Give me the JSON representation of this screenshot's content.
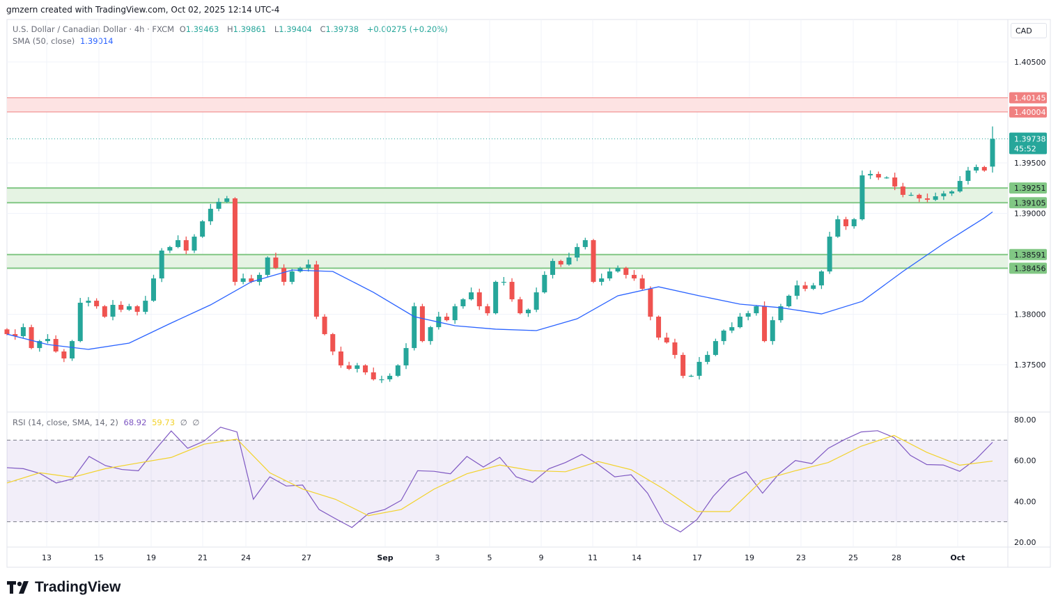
{
  "credit": "gmzern created with TradingView.com, Oct 02, 2025 12:14 UTC-4",
  "legend": {
    "symbol": "U.S. Dollar / Canadian Dollar · 4h · FXCM",
    "open_label": "O",
    "open": "1.39463",
    "high_label": "H",
    "high": "1.39861",
    "low_label": "L",
    "low": "1.39404",
    "close_label": "C",
    "close": "1.39738",
    "change": "+0.00275 (+0.20%)",
    "sma_label": "SMA (50, close)",
    "sma_value": "1.39014",
    "rsi_label": "RSI (14, close, SMA, 14, 2)",
    "rsi_value": "68.92",
    "rsi_sma_value": "59.73",
    "null1": "∅",
    "null2": "∅"
  },
  "currency": "CAD",
  "last_price_label": {
    "price": "1.39738",
    "countdown": "45:52"
  },
  "logo_text": "TradingView",
  "colors": {
    "up": "#26a69a",
    "down": "#ef5350",
    "sma": "#2962ff",
    "rsi": "#7e57c2",
    "rsi_sma": "#f2d22b",
    "resistance_zone": "#f08080",
    "support_zone": "#81c784"
  },
  "chart_data": [
    {
      "type": "candlestick",
      "interval": "4h",
      "price_axis": {
        "ticks": [
          "1.40500",
          "1.39500",
          "1.39000",
          "1.38000",
          "1.37500"
        ],
        "range": [
          1.3715,
          1.4085
        ]
      },
      "x_ticks": [
        "13",
        "15",
        "19",
        "21",
        "24",
        "27",
        "Sep",
        "3",
        "5",
        "9",
        "11",
        "14",
        "17",
        "19",
        "23",
        "25",
        "28",
        "Oct"
      ],
      "last": {
        "open": 1.39463,
        "high": 1.39861,
        "low": 1.39404,
        "close": 1.39738
      },
      "closes": [
        1.37803,
        1.37783,
        1.37872,
        1.37665,
        1.37734,
        1.37755,
        1.37631,
        1.37562,
        1.37734,
        1.38114,
        1.38134,
        1.38079,
        1.37976,
        1.38093,
        1.38045,
        1.38079,
        1.38024,
        1.38134,
        1.38355,
        1.38631,
        1.38666,
        1.38734,
        1.38631,
        1.38769,
        1.38921,
        1.39045,
        1.39114,
        1.39148,
        1.38321,
        1.38355,
        1.38321,
        1.3839,
        1.38562,
        1.38459,
        1.38321,
        1.38424,
        1.38459,
        1.38493,
        1.37976,
        1.37803,
        1.37631,
        1.37493,
        1.37459,
        1.37493,
        1.37424,
        1.37355,
        1.37355,
        1.3739,
        1.37493,
        1.37665,
        1.38079,
        1.37734,
        1.37872,
        1.37976,
        1.37941,
        1.38079,
        1.38148,
        1.38217,
        1.38079,
        1.3801,
        1.38321,
        1.38321,
        1.38148,
        1.3801,
        1.38045,
        1.38217,
        1.3839,
        1.38528,
        1.38493,
        1.38562,
        1.38666,
        1.38734,
        1.38321,
        1.38355,
        1.38424,
        1.38459,
        1.3839,
        1.38355,
        1.38252,
        1.37976,
        1.37769,
        1.37721,
        1.37597,
        1.3739,
        1.3739,
        1.37528,
        1.37597,
        1.37734,
        1.37838,
        1.37872,
        1.37976,
        1.3801,
        1.38079,
        1.37734,
        1.37941,
        1.38079,
        1.38183,
        1.38286,
        1.38252,
        1.38286,
        1.38424,
        1.38769,
        1.38941,
        1.38872,
        1.38941,
        1.39376,
        1.3939,
        1.39355,
        1.39355,
        1.39266,
        1.39183,
        1.39183,
        1.39148,
        1.39134,
        1.39169,
        1.39197,
        1.39217,
        1.39321,
        1.39424,
        1.39459,
        1.39424,
        1.39738
      ],
      "sma50": [
        1.37803,
        1.377,
        1.37652,
        1.37714,
        1.37907,
        1.38093,
        1.38321,
        1.38438,
        1.38424,
        1.38217,
        1.37976,
        1.37886,
        1.37852,
        1.37838,
        1.37955,
        1.38183,
        1.38272,
        1.38183,
        1.381,
        1.38065,
        1.38003,
        1.38128,
        1.38424,
        1.387,
        1.38955,
        1.39014
      ],
      "zones": [
        {
          "kind": "resistance",
          "top": 1.40145,
          "bottom": 1.40004,
          "top_label": "1.40145",
          "bottom_label": "1.40004"
        },
        {
          "kind": "support",
          "top": 1.39251,
          "bottom": 1.39105,
          "top_label": "1.39251",
          "bottom_label": "1.39105"
        },
        {
          "kind": "support",
          "top": 1.38591,
          "bottom": 1.38456,
          "top_label": "1.38591",
          "bottom_label": "1.38456"
        }
      ]
    },
    {
      "type": "line",
      "panel": "RSI",
      "y_ticks": [
        "80.00",
        "60.00",
        "40.00",
        "20.00"
      ],
      "ylim": [
        20,
        80
      ],
      "bands": {
        "upper": 70,
        "middle": 50,
        "lower": 30
      },
      "rsi": [
        56.5,
        56,
        53.7,
        49,
        51,
        62,
        57.5,
        55.6,
        55,
        65,
        74.5,
        66,
        69.5,
        76.3,
        74,
        41,
        52,
        47.5,
        48,
        36,
        31.5,
        27.2,
        34,
        36,
        40.5,
        55,
        54.7,
        53.5,
        62,
        56.8,
        61.6,
        52,
        49.3,
        56,
        59,
        63,
        58,
        52,
        53,
        44,
        29.5,
        25,
        31,
        42.5,
        51,
        54.5,
        44,
        53.5,
        60,
        58.5,
        66,
        70.3,
        74,
        74.6,
        71.3,
        62.5,
        58,
        57.8,
        54.7,
        60.7,
        68.92
      ],
      "rsi_sma": [
        49,
        54,
        51.8,
        56,
        58.8,
        61.5,
        68,
        70.5,
        54,
        46,
        41,
        33,
        36,
        46,
        53.5,
        57.8,
        55,
        54.5,
        59.5,
        55.5,
        46,
        35,
        35,
        50.5,
        55,
        59,
        67,
        72.3,
        64,
        57.7,
        59.73
      ]
    }
  ]
}
